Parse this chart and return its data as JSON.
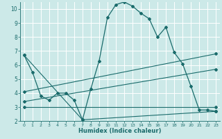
{
  "xlabel": "Humidex (Indice chaleur)",
  "ylabel": "",
  "xlim": [
    -0.5,
    23.5
  ],
  "ylim": [
    2,
    10.5
  ],
  "yticks": [
    2,
    3,
    4,
    5,
    6,
    7,
    8,
    9,
    10
  ],
  "xticks": [
    0,
    1,
    2,
    3,
    4,
    5,
    6,
    7,
    8,
    9,
    10,
    11,
    12,
    13,
    14,
    15,
    16,
    17,
    18,
    19,
    20,
    21,
    22,
    23
  ],
  "background_color": "#cce9e8",
  "grid_color": "#ffffff",
  "line_color": "#1a6b6b",
  "main_line": {
    "x": [
      0,
      1,
      2,
      3,
      4,
      5,
      6,
      7,
      8,
      9,
      10,
      11,
      12,
      13,
      14,
      15,
      16,
      17,
      18,
      19,
      20,
      21,
      22,
      23
    ],
    "y": [
      6.7,
      5.5,
      3.8,
      3.5,
      4.0,
      4.0,
      3.5,
      2.1,
      4.3,
      6.3,
      9.4,
      10.3,
      10.5,
      10.2,
      9.7,
      9.3,
      8.0,
      8.7,
      6.9,
      6.1,
      4.5,
      2.8,
      2.8,
      2.7
    ]
  },
  "extra_lines": [
    {
      "x": [
        0,
        7,
        23
      ],
      "y": [
        6.7,
        2.1,
        2.7
      ]
    },
    {
      "x": [
        0,
        23
      ],
      "y": [
        4.1,
        6.8
      ]
    },
    {
      "x": [
        0,
        23
      ],
      "y": [
        3.4,
        5.7
      ]
    },
    {
      "x": [
        0,
        23
      ],
      "y": [
        3.0,
        3.0
      ]
    }
  ]
}
